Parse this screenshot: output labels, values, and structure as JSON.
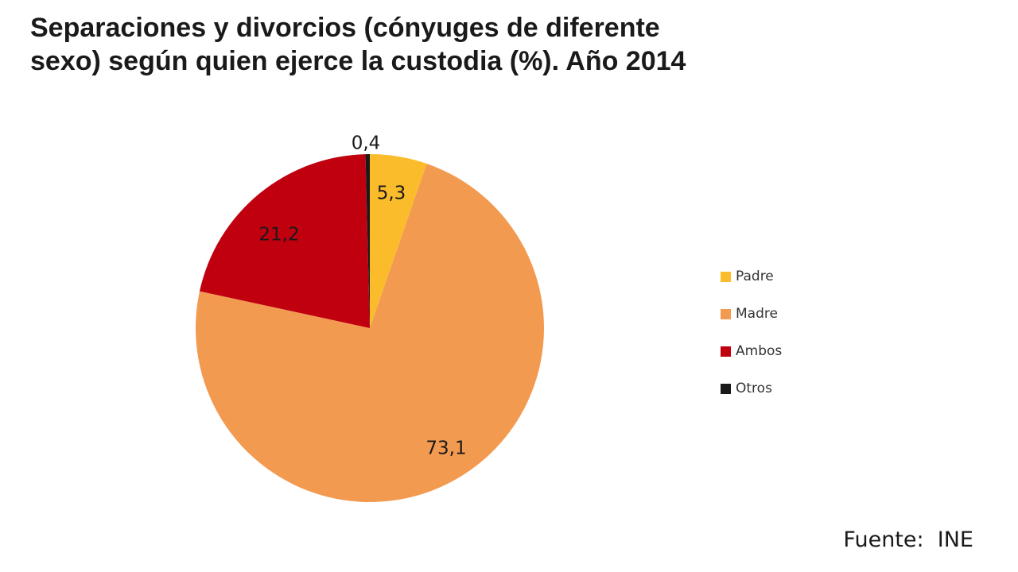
{
  "chart_data": {
    "type": "pie",
    "title_lines": [
      "Separaciones y divorcios (cónyuges de diferente",
      "sexo)  según quien ejerce la custodia (%). Año 2014"
    ],
    "categories": [
      "Padre",
      "Madre",
      "Ambos",
      "Otros"
    ],
    "values": [
      5.3,
      73.1,
      21.2,
      0.4
    ],
    "data_labels": [
      "5,3",
      "73,1",
      "21,2",
      "0,4"
    ],
    "colors": [
      "#fbbc2c",
      "#f39a51",
      "#c0000f",
      "#1a1a1a"
    ],
    "start": "12 o'clock",
    "direction": "clockwise",
    "legend_position": "right"
  },
  "source": "Fuente:  INE"
}
